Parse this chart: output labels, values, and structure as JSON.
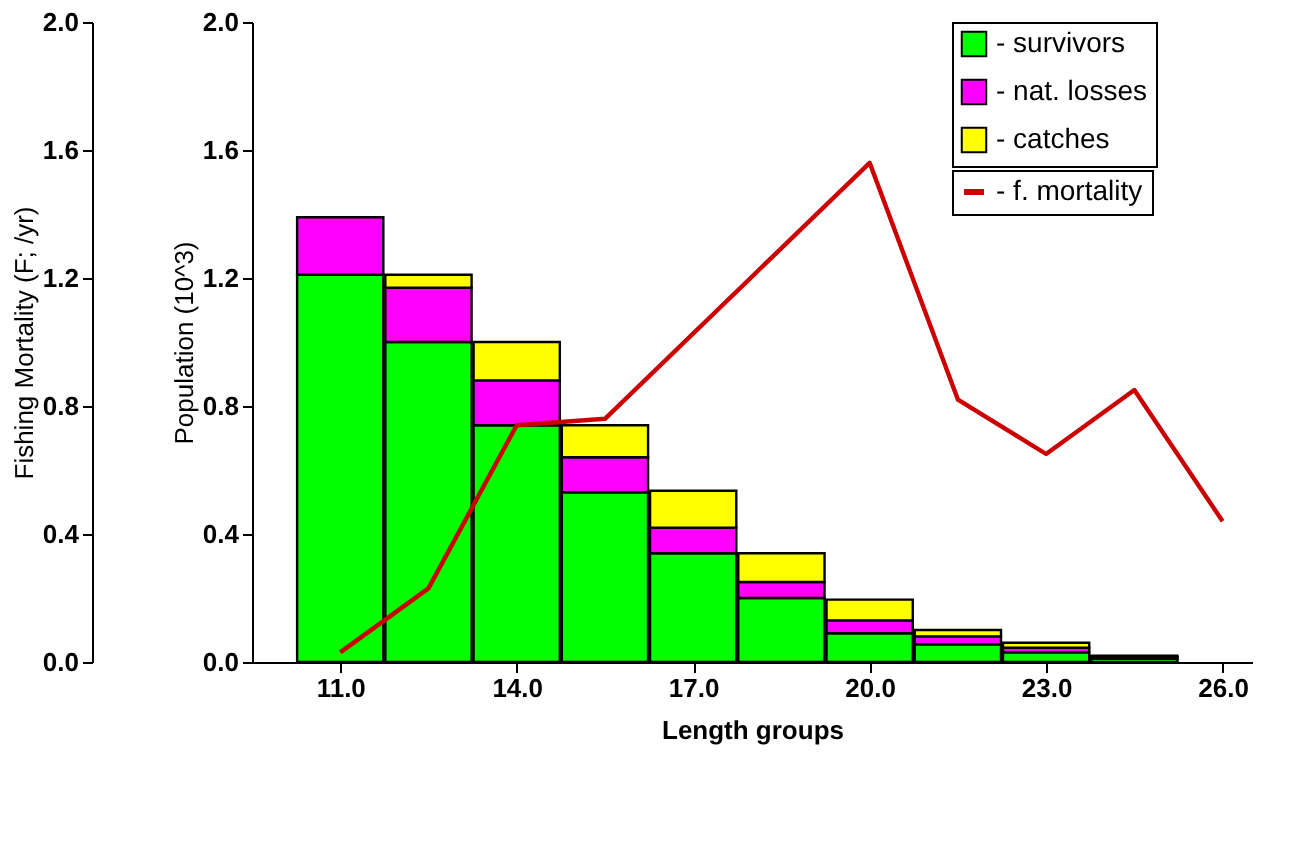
{
  "chart_data": {
    "type": "bar",
    "stacked": true,
    "xlabel": "Length groups",
    "ylabel": "Fishing Mortality (F; /yr)",
    "y2label": "Population (10^3)",
    "x": [
      11.0,
      12.5,
      14.0,
      15.5,
      17.0,
      18.5,
      20.0,
      21.5,
      23.0,
      24.5
    ],
    "series": [
      {
        "name": "- survivors",
        "color": "#00ff00",
        "axis": "y2",
        "values": [
          1.21,
          1.0,
          0.74,
          0.53,
          0.34,
          0.2,
          0.09,
          0.055,
          0.03,
          0.01
        ]
      },
      {
        "name": "- nat. losses",
        "color": "#ff00ff",
        "axis": "y2",
        "values": [
          0.18,
          0.17,
          0.14,
          0.11,
          0.08,
          0.05,
          0.04,
          0.025,
          0.015,
          0.005
        ]
      },
      {
        "name": "- catches",
        "color": "#ffff00",
        "axis": "y2",
        "values": [
          null,
          0.04,
          0.12,
          0.1,
          0.115,
          0.09,
          0.065,
          0.02,
          0.015,
          0.005
        ]
      },
      {
        "name": "- f. mortality",
        "color": "#cc0000",
        "type": "line",
        "x": [
          11.0,
          12.5,
          14.0,
          15.5,
          20.0,
          21.5,
          23.0,
          24.5,
          26.0
        ],
        "values": [
          0.03,
          0.23,
          0.74,
          0.76,
          1.56,
          0.82,
          0.65,
          0.85,
          0.44
        ]
      }
    ],
    "xlim": [
      9.5,
      26.5
    ],
    "xticks": [
      {
        "value": 11,
        "label": "11.0"
      },
      {
        "value": 14,
        "label": "14.0"
      },
      {
        "value": 17,
        "label": "17.0"
      },
      {
        "value": 20,
        "label": "20.0"
      },
      {
        "value": 23,
        "label": "23.0"
      },
      {
        "value": 26,
        "label": "26.0"
      }
    ],
    "ylim": [
      0,
      2.0
    ],
    "yticks": [
      {
        "value": 0,
        "label": "0.0"
      },
      {
        "value": 0.4,
        "label": "0.4"
      },
      {
        "value": 0.8,
        "label": "0.8"
      },
      {
        "value": 1.2,
        "label": "1.2"
      },
      {
        "value": 1.6,
        "label": "1.6"
      },
      {
        "value": 2.0,
        "label": "2.0"
      }
    ],
    "y2lim": [
      0,
      2.0
    ],
    "y2ticks": [
      {
        "value": 0,
        "label": "0.0"
      },
      {
        "value": 0.4,
        "label": "0.4"
      },
      {
        "value": 0.8,
        "label": "0.8"
      },
      {
        "value": 1.2,
        "label": "1.2"
      },
      {
        "value": 1.6,
        "label": "1.6"
      },
      {
        "value": 2.0,
        "label": "2.0"
      }
    ],
    "grid": false,
    "legend": "top right",
    "line_style": "solid",
    "marker": "none"
  }
}
